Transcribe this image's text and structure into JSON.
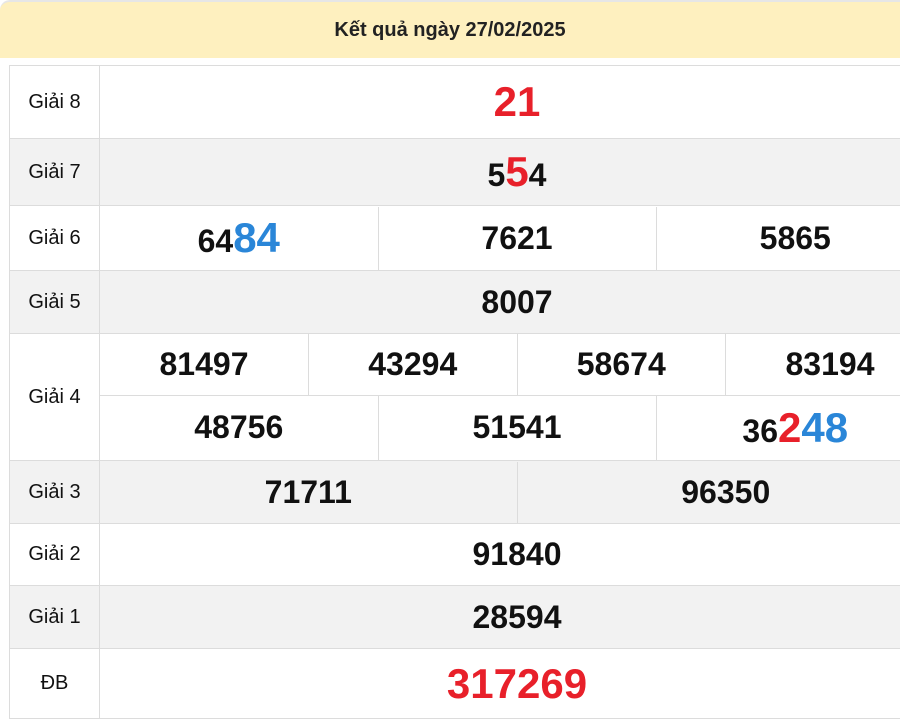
{
  "header": {
    "title": "Kết quả ngày 27/02/2025"
  },
  "colors": {
    "header_bg": "#fef0bf",
    "highlight_red": "#e8202a",
    "highlight_blue": "#2a86d8",
    "row_alt_bg": "#f2f2f2"
  },
  "prizes": [
    {
      "label": "Giải 8",
      "numbers": [
        [
          {
            "t": "21",
            "c": "red",
            "big": true
          }
        ]
      ]
    },
    {
      "label": "Giải 7",
      "numbers": [
        [
          {
            "t": "5"
          },
          {
            "t": "5",
            "c": "red",
            "big": true
          },
          {
            "t": "4"
          }
        ]
      ]
    },
    {
      "label": "Giải 6",
      "numbers": [
        [
          {
            "t": "64"
          },
          {
            "t": "84",
            "c": "blue",
            "big": true
          }
        ],
        [
          {
            "t": "7621"
          }
        ],
        [
          {
            "t": "5865"
          }
        ]
      ]
    },
    {
      "label": "Giải 5",
      "numbers": [
        [
          {
            "t": "8007"
          }
        ]
      ]
    },
    {
      "label": "Giải 4",
      "numbers": [
        [
          {
            "t": "81497"
          }
        ],
        [
          {
            "t": "43294"
          }
        ],
        [
          {
            "t": "58674"
          }
        ],
        [
          {
            "t": "83194"
          }
        ],
        [
          {
            "t": "48756"
          }
        ],
        [
          {
            "t": "51541"
          }
        ],
        [
          {
            "t": "36"
          },
          {
            "t": "2",
            "c": "red",
            "big": true
          },
          {
            "t": "48",
            "c": "blue",
            "big": true
          }
        ]
      ]
    },
    {
      "label": "Giải 3",
      "numbers": [
        [
          {
            "t": "71711"
          }
        ],
        [
          {
            "t": "96350"
          }
        ]
      ]
    },
    {
      "label": "Giải 2",
      "numbers": [
        [
          {
            "t": "91840"
          }
        ]
      ]
    },
    {
      "label": "Giải 1",
      "numbers": [
        [
          {
            "t": "28594"
          }
        ]
      ]
    },
    {
      "label": "ĐB",
      "numbers": [
        [
          {
            "t": "317269",
            "c": "red",
            "big": true
          }
        ]
      ]
    }
  ]
}
